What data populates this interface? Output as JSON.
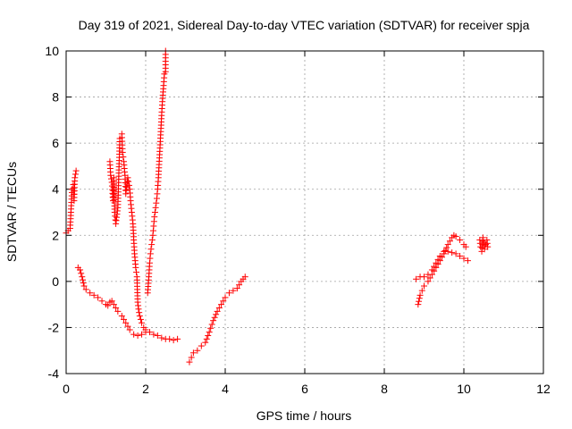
{
  "chart_data": {
    "type": "scatter",
    "title": "Day 319 of 2021, Sidereal Day-to-day VTEC variation (SDTVAR) for receiver spja",
    "xlabel": "GPS time / hours",
    "ylabel": "SDTVAR / TECUs",
    "xlim": [
      0,
      12
    ],
    "ylim": [
      -4,
      10
    ],
    "xticks": [
      "0",
      "2",
      "4",
      "6",
      "8",
      "10",
      "12"
    ],
    "yticks": [
      "-4",
      "-2",
      "0",
      "2",
      "4",
      "6",
      "8",
      "10"
    ],
    "grid": true,
    "marker": "plus",
    "color": "#ff0000",
    "series": [
      {
        "name": "SDTVAR",
        "segments": [
          [
            [
              0.0,
              2.1
            ],
            [
              0.05,
              2.2
            ],
            [
              0.1,
              2.3
            ],
            [
              0.12,
              3.0
            ],
            [
              0.15,
              4.0
            ],
            [
              0.18,
              4.2
            ],
            [
              0.2,
              3.5
            ],
            [
              0.22,
              4.5
            ],
            [
              0.25,
              4.8
            ]
          ],
          [
            [
              0.3,
              0.6
            ],
            [
              0.35,
              0.5
            ],
            [
              0.4,
              0.2
            ],
            [
              0.45,
              -0.2
            ],
            [
              0.5,
              -0.35
            ],
            [
              0.6,
              -0.5
            ],
            [
              0.7,
              -0.6
            ],
            [
              0.8,
              -0.7
            ],
            [
              0.9,
              -0.85
            ],
            [
              1.0,
              -1.0
            ],
            [
              1.05,
              -1.05
            ],
            [
              1.1,
              -0.9
            ],
            [
              1.15,
              -0.85
            ],
            [
              1.2,
              -1.0
            ],
            [
              1.3,
              -1.3
            ],
            [
              1.4,
              -1.5
            ],
            [
              1.5,
              -1.8
            ],
            [
              1.6,
              -2.1
            ],
            [
              1.7,
              -2.3
            ],
            [
              1.8,
              -2.35
            ],
            [
              1.9,
              -2.3
            ],
            [
              2.0,
              -2.2
            ],
            [
              2.1,
              -2.2
            ],
            [
              2.2,
              -2.3
            ],
            [
              2.3,
              -2.35
            ],
            [
              2.4,
              -2.45
            ],
            [
              2.5,
              -2.5
            ],
            [
              2.6,
              -2.5
            ],
            [
              2.7,
              -2.55
            ],
            [
              2.8,
              -2.5
            ]
          ],
          [
            [
              1.1,
              5.2
            ],
            [
              1.12,
              4.6
            ],
            [
              1.15,
              4.3
            ],
            [
              1.18,
              3.5
            ],
            [
              1.2,
              4.5
            ],
            [
              1.22,
              3.0
            ],
            [
              1.25,
              2.5
            ],
            [
              1.3,
              3.2
            ],
            [
              1.35,
              6.2
            ],
            [
              1.4,
              6.4
            ],
            [
              1.42,
              5.6
            ],
            [
              1.45,
              5.2
            ],
            [
              1.48,
              4.6
            ],
            [
              1.5,
              3.8
            ],
            [
              1.55,
              4.5
            ],
            [
              1.6,
              4.0
            ],
            [
              1.62,
              3.5
            ],
            [
              1.65,
              3.0
            ],
            [
              1.68,
              2.5
            ],
            [
              1.7,
              1.8
            ],
            [
              1.72,
              1.2
            ],
            [
              1.75,
              0.6
            ],
            [
              1.78,
              0.2
            ],
            [
              1.8,
              -0.9
            ],
            [
              1.82,
              -1.2
            ],
            [
              1.85,
              -1.5
            ],
            [
              1.9,
              -1.8
            ],
            [
              1.95,
              -2.0
            ],
            [
              2.0,
              -2.1
            ]
          ],
          [
            [
              2.05,
              -0.5
            ],
            [
              2.08,
              0.2
            ],
            [
              2.1,
              0.8
            ],
            [
              2.12,
              1.2
            ],
            [
              2.15,
              1.6
            ],
            [
              2.18,
              2.0
            ],
            [
              2.2,
              2.4
            ],
            [
              2.22,
              2.8
            ],
            [
              2.25,
              3.2
            ],
            [
              2.28,
              3.6
            ],
            [
              2.3,
              4.0
            ],
            [
              2.32,
              4.5
            ],
            [
              2.35,
              5.5
            ],
            [
              2.38,
              6.5
            ],
            [
              2.4,
              7.2
            ],
            [
              2.42,
              7.8
            ],
            [
              2.45,
              8.5
            ],
            [
              2.47,
              9.0
            ],
            [
              2.5,
              9.1
            ],
            [
              2.5,
              10.0
            ]
          ],
          [
            [
              3.1,
              -3.5
            ],
            [
              3.15,
              -3.3
            ],
            [
              3.2,
              -3.1
            ],
            [
              3.3,
              -3.0
            ],
            [
              3.4,
              -2.8
            ],
            [
              3.5,
              -2.65
            ],
            [
              3.6,
              -2.2
            ],
            [
              3.7,
              -1.7
            ],
            [
              3.8,
              -1.3
            ],
            [
              3.9,
              -1.0
            ],
            [
              4.0,
              -0.7
            ],
            [
              4.1,
              -0.5
            ],
            [
              4.2,
              -0.4
            ],
            [
              4.3,
              -0.3
            ],
            [
              4.4,
              0.0
            ],
            [
              4.45,
              0.1
            ],
            [
              4.5,
              0.2
            ]
          ],
          [
            [
              8.8,
              0.1
            ],
            [
              8.9,
              0.2
            ],
            [
              9.0,
              0.2
            ],
            [
              9.1,
              0.3
            ],
            [
              9.2,
              0.5
            ],
            [
              9.3,
              0.8
            ],
            [
              9.4,
              1.1
            ],
            [
              9.5,
              1.3
            ],
            [
              9.6,
              1.3
            ],
            [
              9.7,
              1.25
            ],
            [
              9.8,
              1.2
            ],
            [
              9.9,
              1.1
            ],
            [
              10.0,
              1.0
            ],
            [
              10.1,
              0.9
            ]
          ],
          [
            [
              8.85,
              -1.0
            ],
            [
              8.9,
              -0.6
            ],
            [
              8.95,
              -0.4
            ],
            [
              9.0,
              -0.2
            ],
            [
              9.1,
              0.0
            ],
            [
              9.2,
              0.3
            ],
            [
              9.3,
              0.6
            ],
            [
              9.4,
              0.9
            ],
            [
              9.5,
              1.2
            ],
            [
              9.6,
              1.6
            ],
            [
              9.7,
              1.9
            ],
            [
              9.75,
              2.0
            ],
            [
              9.8,
              1.95
            ],
            [
              9.9,
              1.8
            ],
            [
              10.0,
              1.6
            ],
            [
              10.05,
              1.5
            ]
          ],
          [
            [
              10.4,
              1.8
            ],
            [
              10.42,
              1.5
            ],
            [
              10.45,
              1.3
            ],
            [
              10.48,
              1.9
            ],
            [
              10.5,
              1.7
            ],
            [
              10.52,
              1.4
            ],
            [
              10.55,
              1.6
            ],
            [
              10.58,
              1.8
            ],
            [
              10.6,
              1.5
            ]
          ]
        ]
      }
    ]
  }
}
